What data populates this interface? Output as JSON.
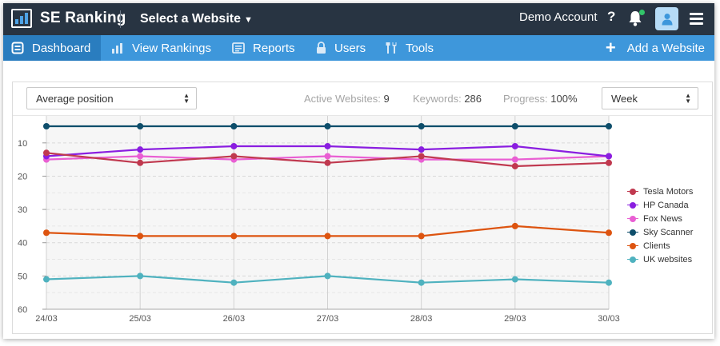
{
  "header": {
    "brand": "SE Ranking",
    "site_select": "Select a Website",
    "account": "Demo Account",
    "help": "?"
  },
  "nav": {
    "items": [
      {
        "label": "Dashboard",
        "icon": "dashboard-icon"
      },
      {
        "label": "View Rankings",
        "icon": "bar-chart-icon"
      },
      {
        "label": "Reports",
        "icon": "report-icon"
      },
      {
        "label": "Users",
        "icon": "lock-icon"
      },
      {
        "label": "Tools",
        "icon": "tools-icon"
      }
    ],
    "add_site": "Add a Website"
  },
  "toolbar": {
    "metric_select": "Average position",
    "active_websites_label": "Active Websites:",
    "active_websites_value": "9",
    "keywords_label": "Keywords:",
    "keywords_value": "286",
    "progress_label": "Progress:",
    "progress_value": "100%",
    "period_select": "Week"
  },
  "chart_data": {
    "type": "line",
    "title": "Average position",
    "categories": [
      "24/03",
      "25/03",
      "26/03",
      "27/03",
      "28/03",
      "29/03",
      "30/03"
    ],
    "ylim": [
      60,
      5
    ],
    "yticks": [
      10,
      20,
      30,
      40,
      50,
      60
    ],
    "ylabel": "",
    "xlabel": "",
    "legend_position": "right",
    "series": [
      {
        "name": "Tesla Motors",
        "color": "#c0394f",
        "values": [
          13,
          16,
          14,
          16,
          14,
          17,
          16
        ]
      },
      {
        "name": "HP Canada",
        "color": "#8a1ee0",
        "values": [
          14,
          12,
          11,
          11,
          12,
          11,
          14
        ]
      },
      {
        "name": "Fox News",
        "color": "#e95fd3",
        "values": [
          15,
          14,
          15,
          14,
          15,
          15,
          14
        ]
      },
      {
        "name": "Sky Scanner",
        "color": "#0e4e6b",
        "values": [
          5,
          5,
          5,
          5,
          5,
          5,
          5
        ]
      },
      {
        "name": "Clients",
        "color": "#dd5410",
        "values": [
          37,
          38,
          38,
          38,
          38,
          35,
          37
        ]
      },
      {
        "name": "UK websites",
        "color": "#4fb2bf",
        "values": [
          51,
          50,
          52,
          50,
          52,
          51,
          52
        ]
      }
    ]
  }
}
